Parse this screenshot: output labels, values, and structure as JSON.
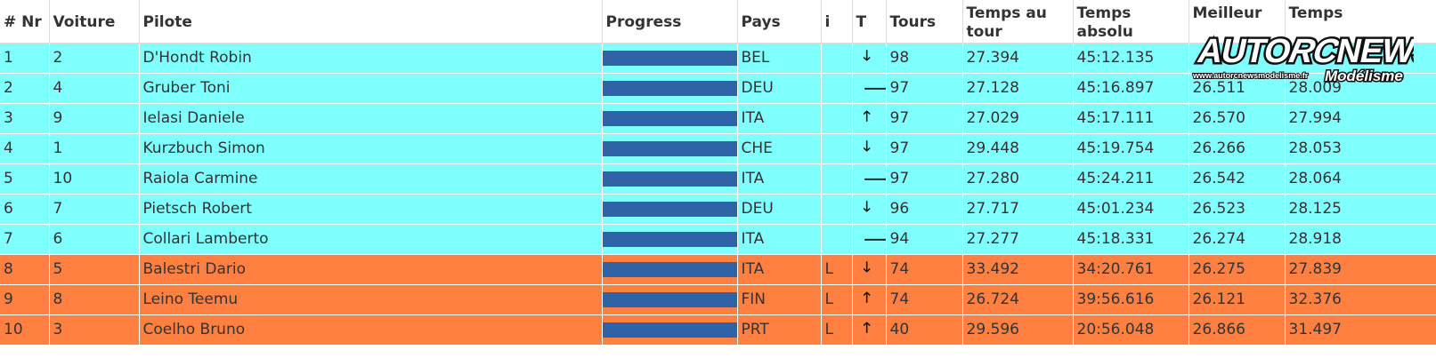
{
  "columns": {
    "pos": "# Nr",
    "car": "Voiture",
    "driver": "Pilote",
    "progress": "Progress",
    "country": "Pays",
    "info": "i",
    "trend": "T",
    "laps": "Tours",
    "lap_time_l1": "Temps au",
    "lap_time_l2": "tour",
    "abs_time_l1": "Temps",
    "abs_time_l2": "absolu",
    "best": "Meilleur",
    "time": "Temps"
  },
  "rows": [
    {
      "pos": "1",
      "car": "2",
      "driver": "D'Hondt Robin",
      "country": "BEL",
      "info": "",
      "trend": "down-arrow-icon",
      "trend_glyph": "🡓",
      "laps": "98",
      "lap_time": "27.394",
      "abs_time": "45:12.135",
      "best": "",
      "time": "",
      "progress": 1.0,
      "group": "cyan"
    },
    {
      "pos": "2",
      "car": "4",
      "driver": "Gruber Toni",
      "country": "DEU",
      "info": "",
      "trend": "right-arrow-icon",
      "trend_glyph": "🡒",
      "laps": "97",
      "lap_time": "27.128",
      "abs_time": "45:16.897",
      "best": "26.511",
      "time": "28.009",
      "progress": 1.0,
      "group": "cyan"
    },
    {
      "pos": "3",
      "car": "9",
      "driver": "Ielasi Daniele",
      "country": "ITA",
      "info": "",
      "trend": "up-arrow-icon",
      "trend_glyph": "🡑",
      "laps": "97",
      "lap_time": "27.029",
      "abs_time": "45:17.111",
      "best": "26.570",
      "time": "27.994",
      "progress": 1.0,
      "group": "cyan"
    },
    {
      "pos": "4",
      "car": "1",
      "driver": "Kurzbuch Simon",
      "country": "CHE",
      "info": "",
      "trend": "down-arrow-icon",
      "trend_glyph": "🡓",
      "laps": "97",
      "lap_time": "29.448",
      "abs_time": "45:19.754",
      "best": "26.266",
      "time": "28.053",
      "progress": 1.0,
      "group": "cyan"
    },
    {
      "pos": "5",
      "car": "10",
      "driver": "Raiola Carmine",
      "country": "ITA",
      "info": "",
      "trend": "right-arrow-icon",
      "trend_glyph": "🡒",
      "laps": "97",
      "lap_time": "27.280",
      "abs_time": "45:24.211",
      "best": "26.542",
      "time": "28.064",
      "progress": 1.0,
      "group": "cyan"
    },
    {
      "pos": "6",
      "car": "7",
      "driver": "Pietsch Robert",
      "country": "DEU",
      "info": "",
      "trend": "down-arrow-icon",
      "trend_glyph": "🡓",
      "laps": "96",
      "lap_time": "27.717",
      "abs_time": "45:01.234",
      "best": "26.523",
      "time": "28.125",
      "progress": 1.0,
      "group": "cyan"
    },
    {
      "pos": "7",
      "car": "6",
      "driver": "Collari Lamberto",
      "country": "ITA",
      "info": "",
      "trend": "right-arrow-icon",
      "trend_glyph": "🡒",
      "laps": "94",
      "lap_time": "27.277",
      "abs_time": "45:18.331",
      "best": "26.274",
      "time": "28.918",
      "progress": 1.0,
      "group": "cyan"
    },
    {
      "pos": "8",
      "car": "5",
      "driver": "Balestri Dario",
      "country": "ITA",
      "info": "L",
      "trend": "down-arrow-icon",
      "trend_glyph": "🡓",
      "laps": "74",
      "lap_time": "33.492",
      "abs_time": "34:20.761",
      "best": "26.275",
      "time": "27.839",
      "progress": 1.0,
      "group": "orange"
    },
    {
      "pos": "9",
      "car": "8",
      "driver": "Leino Teemu",
      "country": "FIN",
      "info": "L",
      "trend": "up-arrow-icon",
      "trend_glyph": "🡑",
      "laps": "74",
      "lap_time": "26.724",
      "abs_time": "39:56.616",
      "best": "26.121",
      "time": "32.376",
      "progress": 1.0,
      "group": "orange"
    },
    {
      "pos": "10",
      "car": "3",
      "driver": "Coelho Bruno",
      "country": "PRT",
      "info": "L",
      "trend": "up-arrow-icon",
      "trend_glyph": "🡑",
      "laps": "40",
      "lap_time": "29.596",
      "abs_time": "20:56.048",
      "best": "26.866",
      "time": "31.497",
      "progress": 1.0,
      "group": "orange"
    }
  ],
  "logo": {
    "part1": "AUTO",
    "part2": "RC",
    "part3": "NEWS",
    "url": "www.autorcnewsmodelisme.fr",
    "sub": "Modélisme"
  },
  "colors": {
    "cyan_row": "#80ffff",
    "orange_row": "#ff8040",
    "progress_bar": "#2f62a6"
  }
}
